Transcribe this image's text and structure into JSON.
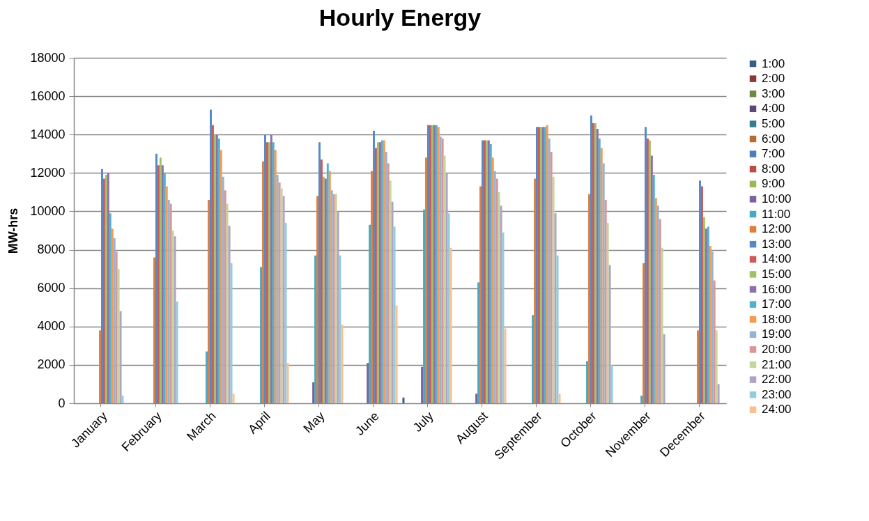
{
  "chart_data": {
    "type": "bar",
    "title": "Hourly Energy",
    "ylabel": "MW-hrs",
    "categories": [
      "January",
      "February",
      "March",
      "April",
      "May",
      "June",
      "July",
      "August",
      "September",
      "October",
      "November",
      "December"
    ],
    "ylim": [
      0,
      18000
    ],
    "yticks": [
      0,
      2000,
      4000,
      6000,
      8000,
      10000,
      12000,
      14000,
      16000,
      18000
    ],
    "grid": "y",
    "legend": "right",
    "series": [
      {
        "name": "1:00",
        "color": "#385d8a",
        "values": [
          null,
          null,
          null,
          null,
          null,
          null,
          300,
          null,
          null,
          null,
          null,
          null
        ]
      },
      {
        "name": "2:00",
        "color": "#8c3836",
        "values": [
          null,
          null,
          null,
          null,
          null,
          null,
          null,
          null,
          null,
          null,
          null,
          null
        ]
      },
      {
        "name": "3:00",
        "color": "#71893f",
        "values": [
          null,
          null,
          null,
          null,
          null,
          null,
          null,
          null,
          null,
          null,
          null,
          null
        ]
      },
      {
        "name": "4:00",
        "color": "#5c4776",
        "values": [
          null,
          null,
          null,
          null,
          null,
          null,
          null,
          null,
          null,
          null,
          null,
          null
        ]
      },
      {
        "name": "5:00",
        "color": "#357d91",
        "values": [
          null,
          null,
          null,
          null,
          null,
          null,
          null,
          null,
          null,
          null,
          null,
          null
        ]
      },
      {
        "name": "6:00",
        "color": "#b66d31",
        "values": [
          null,
          null,
          null,
          null,
          null,
          null,
          null,
          null,
          null,
          null,
          null,
          null
        ]
      },
      {
        "name": "7:00",
        "color": "#4a7ebb",
        "values": [
          null,
          null,
          null,
          null,
          null,
          null,
          null,
          null,
          null,
          null,
          null,
          null
        ]
      },
      {
        "name": "8:00",
        "color": "#be4b48",
        "values": [
          null,
          null,
          null,
          null,
          null,
          null,
          null,
          null,
          null,
          null,
          null,
          null
        ]
      },
      {
        "name": "9:00",
        "color": "#98b954",
        "values": [
          null,
          null,
          null,
          null,
          null,
          null,
          null,
          null,
          null,
          null,
          null,
          null
        ]
      },
      {
        "name": "10:00",
        "color": "#7d60a0",
        "values": [
          null,
          null,
          null,
          null,
          1100,
          2100,
          1900,
          500,
          null,
          null,
          null,
          null
        ]
      },
      {
        "name": "11:00",
        "color": "#46aac5",
        "values": [
          null,
          null,
          2700,
          7100,
          7700,
          9300,
          10100,
          6300,
          4600,
          2200,
          400,
          null
        ]
      },
      {
        "name": "12:00",
        "color": "#e07f3b",
        "values": [
          3800,
          7600,
          10600,
          12600,
          10800,
          12100,
          12800,
          11300,
          11700,
          10900,
          7300,
          3800
        ]
      },
      {
        "name": "13:00",
        "color": "#5589c8",
        "values": [
          12200,
          13000,
          15300,
          14000,
          13600,
          14200,
          14500,
          13700,
          14400,
          15000,
          14400,
          11600
        ]
      },
      {
        "name": "14:00",
        "color": "#cd5a57",
        "values": [
          11700,
          12400,
          14500,
          13600,
          12700,
          13300,
          14500,
          13700,
          14400,
          14600,
          13800,
          11300
        ]
      },
      {
        "name": "15:00",
        "color": "#a1c264",
        "values": [
          11900,
          12800,
          14000,
          13600,
          11800,
          13600,
          14500,
          13700,
          14400,
          14600,
          13700,
          9700
        ]
      },
      {
        "name": "16:00",
        "color": "#8c70ac",
        "values": [
          12000,
          12400,
          14000,
          14000,
          11700,
          13600,
          14500,
          13700,
          14400,
          14300,
          12900,
          9100
        ]
      },
      {
        "name": "17:00",
        "color": "#4fb3cf",
        "values": [
          9900,
          12000,
          13800,
          13600,
          12500,
          13700,
          14500,
          13500,
          14400,
          13800,
          11900,
          9200
        ]
      },
      {
        "name": "18:00",
        "color": "#f8994d",
        "values": [
          9100,
          11300,
          13200,
          13200,
          12100,
          13700,
          14400,
          12800,
          14500,
          13300,
          10700,
          8200
        ]
      },
      {
        "name": "19:00",
        "color": "#95b3d7",
        "values": [
          8600,
          10600,
          11800,
          11900,
          11100,
          13100,
          13900,
          12100,
          13800,
          12500,
          10300,
          7900
        ]
      },
      {
        "name": "20:00",
        "color": "#d99694",
        "values": [
          7900,
          10400,
          11100,
          11500,
          10900,
          12500,
          13800,
          11700,
          13100,
          10600,
          9600,
          6400
        ]
      },
      {
        "name": "21:00",
        "color": "#c3d69b",
        "values": [
          7000,
          9000,
          10400,
          11200,
          10900,
          11600,
          12900,
          11000,
          11800,
          9400,
          8100,
          3800
        ]
      },
      {
        "name": "22:00",
        "color": "#b2a2c7",
        "values": [
          4800,
          8700,
          9250,
          10800,
          10000,
          10500,
          12000,
          10300,
          9900,
          7200,
          3600,
          1000
        ]
      },
      {
        "name": "23:00",
        "color": "#93cddd",
        "values": [
          400,
          5300,
          7300,
          9400,
          7700,
          9200,
          9900,
          8900,
          7700,
          2000,
          null,
          null
        ]
      },
      {
        "name": "24:00",
        "color": "#fac090",
        "values": [
          null,
          null,
          500,
          2100,
          4100,
          5100,
          8100,
          3900,
          500,
          null,
          null,
          null
        ]
      }
    ]
  }
}
